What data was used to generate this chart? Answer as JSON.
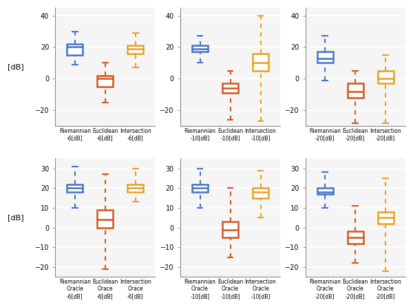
{
  "colors": {
    "blue": "#4472C4",
    "orange": "#D4541A",
    "gold": "#E8A020"
  },
  "background": "#f0f0f0",
  "top_row": {
    "panels": [
      {
        "ylim": [
          -30,
          45
        ],
        "yticks": [
          -20,
          0,
          20,
          40
        ],
        "boxes": [
          {
            "color": "blue",
            "whislo": 9,
            "q1": 15,
            "med": 20,
            "q3": 22,
            "whishi": 30
          },
          {
            "color": "orange",
            "whislo": -15,
            "q1": -5,
            "med": 0,
            "q3": 2,
            "whishi": 10
          },
          {
            "color": "gold",
            "whislo": 7,
            "q1": 16,
            "med": 19,
            "q3": 21,
            "whishi": 29
          }
        ],
        "xlabels": [
          "Riemannian\n-6[dB]",
          "Euclidean\n-6[dB]",
          "Intersection\n-6[dB]"
        ]
      },
      {
        "ylim": [
          -30,
          45
        ],
        "yticks": [
          -20,
          0,
          20,
          40
        ],
        "boxes": [
          {
            "color": "blue",
            "whislo": 10,
            "q1": 17,
            "med": 19,
            "q3": 21,
            "whishi": 27
          },
          {
            "color": "orange",
            "whislo": -26,
            "q1": -9,
            "med": -6,
            "q3": -3,
            "whishi": 5
          },
          {
            "color": "gold",
            "whislo": -27,
            "q1": 5,
            "med": 10,
            "q3": 16,
            "whishi": 40
          }
        ],
        "xlabels": [
          "Riemannian\n-10[dB]",
          "Euclidean\n-10[dB]",
          "Intersection\n-10[dB]"
        ]
      },
      {
        "ylim": [
          -30,
          45
        ],
        "yticks": [
          -20,
          0,
          20,
          40
        ],
        "boxes": [
          {
            "color": "blue",
            "whislo": -1,
            "q1": 10,
            "med": 13,
            "q3": 17,
            "whishi": 27
          },
          {
            "color": "orange",
            "whislo": -28,
            "q1": -12,
            "med": -8,
            "q3": -3,
            "whishi": 5
          },
          {
            "color": "gold",
            "whislo": -28,
            "q1": -3,
            "med": 0,
            "q3": 5,
            "whishi": 15
          }
        ],
        "xlabels": [
          "Riemannian\n-20[dB]",
          "Euclidean\n-20[dB]",
          "Intersection\n-20[dB]"
        ]
      }
    ]
  },
  "bottom_row": {
    "panels": [
      {
        "ylim": [
          -25,
          35
        ],
        "yticks": [
          -20,
          -10,
          0,
          10,
          20,
          30
        ],
        "boxes": [
          {
            "color": "blue",
            "whislo": 10,
            "q1": 18,
            "med": 20,
            "q3": 22,
            "whishi": 31
          },
          {
            "color": "orange",
            "whislo": -21,
            "q1": 0,
            "med": 4,
            "q3": 9,
            "whishi": 27
          },
          {
            "color": "gold",
            "whislo": 13,
            "q1": 18,
            "med": 20,
            "q3": 22,
            "whishi": 30
          }
        ],
        "xlabels": [
          "Riemannian\nOracle\n-6[dB]",
          "Euclidean\nOrace\n-6[dB]",
          "Intersection\nOrace\n-6[dB]"
        ]
      },
      {
        "ylim": [
          -25,
          35
        ],
        "yticks": [
          -20,
          -10,
          0,
          10,
          20,
          30
        ],
        "boxes": [
          {
            "color": "blue",
            "whislo": 10,
            "q1": 18,
            "med": 20,
            "q3": 22,
            "whishi": 30
          },
          {
            "color": "orange",
            "whislo": -15,
            "q1": -5,
            "med": -1,
            "q3": 3,
            "whishi": 20
          },
          {
            "color": "gold",
            "whislo": 5,
            "q1": 15,
            "med": 18,
            "q3": 20,
            "whishi": 29
          }
        ],
        "xlabels": [
          "Riemannian\nOracle\n-10[dB]",
          "Euclidean\nOracle\n-10[dB]",
          "Intersection\nOracle\n-10[dB]"
        ]
      },
      {
        "ylim": [
          -25,
          35
        ],
        "yticks": [
          -20,
          -10,
          0,
          10,
          20,
          30
        ],
        "boxes": [
          {
            "color": "blue",
            "whislo": 10,
            "q1": 17,
            "med": 18,
            "q3": 20,
            "whishi": 28
          },
          {
            "color": "orange",
            "whislo": -18,
            "q1": -8,
            "med": -5,
            "q3": -2,
            "whishi": 11
          },
          {
            "color": "gold",
            "whislo": -22,
            "q1": 2,
            "med": 5,
            "q3": 8,
            "whishi": 25
          }
        ],
        "xlabels": [
          "Riemannian\nOracle\n-20[dB]",
          "Euclidean\nOracle\n-20[dB]",
          "Intersection\nOracle\n-20[dB]"
        ]
      }
    ]
  }
}
